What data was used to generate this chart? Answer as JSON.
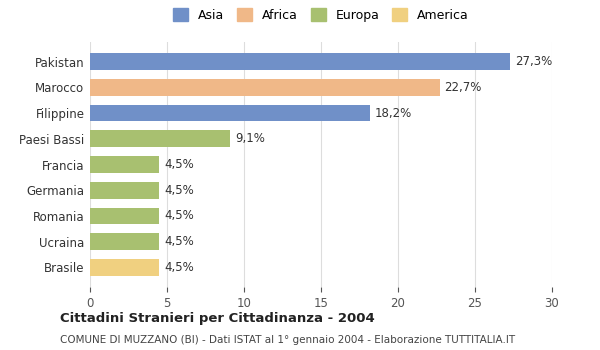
{
  "categories": [
    "Brasile",
    "Ucraina",
    "Romania",
    "Germania",
    "Francia",
    "Paesi Bassi",
    "Filippine",
    "Marocco",
    "Pakistan"
  ],
  "values": [
    4.5,
    4.5,
    4.5,
    4.5,
    4.5,
    9.1,
    18.2,
    22.7,
    27.3
  ],
  "labels": [
    "4,5%",
    "4,5%",
    "4,5%",
    "4,5%",
    "4,5%",
    "9,1%",
    "18,2%",
    "22,7%",
    "27,3%"
  ],
  "colors": [
    "#f0d080",
    "#a8c070",
    "#a8c070",
    "#a8c070",
    "#a8c070",
    "#a8c070",
    "#7090c8",
    "#f0b888",
    "#7090c8"
  ],
  "continents": [
    "America",
    "Europa",
    "Europa",
    "Europa",
    "Europa",
    "Europa",
    "Asia",
    "Africa",
    "Asia"
  ],
  "legend_labels": [
    "Asia",
    "Africa",
    "Europa",
    "America"
  ],
  "legend_colors": [
    "#7090c8",
    "#f0b888",
    "#a8c070",
    "#f0d080"
  ],
  "title": "Cittadini Stranieri per Cittadinanza - 2004",
  "subtitle": "COMUNE DI MUZZANO (BI) - Dati ISTAT al 1° gennaio 2004 - Elaborazione TUTTITALIA.IT",
  "xlim": [
    0,
    30
  ],
  "xticks": [
    0,
    5,
    10,
    15,
    20,
    25,
    30
  ],
  "background_color": "#ffffff",
  "grid_color": "#dddddd"
}
